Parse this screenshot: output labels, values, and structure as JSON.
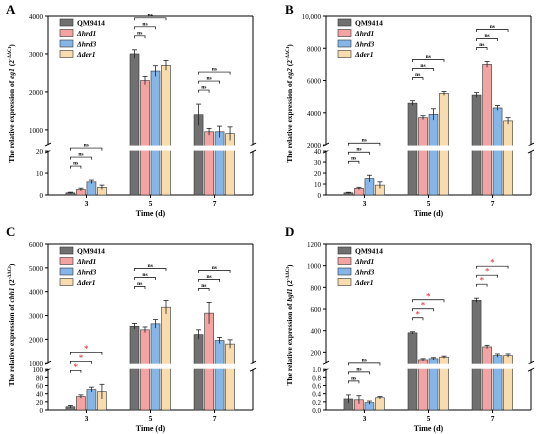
{
  "colors": {
    "QM9414": "#707070",
    "Δhrd1": "#f4a3a3",
    "Δhrd3": "#86b6e8",
    "Δder1": "#f8dcae"
  },
  "chart_data": [
    {
      "panel": "A",
      "type": "bar",
      "ylabel": "The relative expression of eg1 (2^-ΔΔCt)",
      "xlabel": "Time (d)",
      "categories": [
        "3",
        "5",
        "7"
      ],
      "legend": [
        "QM9414",
        "Δhrd1",
        "Δhrd3",
        "Δder1"
      ],
      "legend_position": "top-left",
      "y_break": true,
      "lower_axis": {
        "range": [
          0,
          20
        ],
        "ticks": [
          0,
          10,
          20
        ]
      },
      "upper_axis": {
        "range": [
          600,
          4000
        ],
        "ticks": [
          1000,
          2000,
          3000,
          4000
        ]
      },
      "series": [
        {
          "name": "QM9414",
          "values": [
            1.0,
            3000,
            1400
          ],
          "errors": [
            0.3,
            110,
            280
          ]
        },
        {
          "name": "Δhrd1",
          "values": [
            2.5,
            2300,
            950
          ],
          "errors": [
            0.6,
            110,
            90
          ]
        },
        {
          "name": "Δhrd3",
          "values": [
            6.0,
            2550,
            950
          ],
          "errors": [
            0.8,
            140,
            150
          ]
        },
        {
          "name": "Δder1",
          "values": [
            3.5,
            2700,
            900
          ],
          "errors": [
            1.0,
            130,
            180
          ]
        }
      ],
      "significance": [
        {
          "label": "ns",
          "category": 0,
          "from": 0,
          "to": 1,
          "level": 1
        },
        {
          "label": "ns",
          "category": 0,
          "from": 0,
          "to": 2,
          "level": 2
        },
        {
          "label": "ns",
          "category": 0,
          "from": 0,
          "to": 3,
          "level": 3
        },
        {
          "label": "ns",
          "category": 1,
          "from": 0,
          "to": 1,
          "level": 1
        },
        {
          "label": "ns",
          "category": 1,
          "from": 0,
          "to": 2,
          "level": 2
        },
        {
          "label": "ns",
          "category": 1,
          "from": 0,
          "to": 3,
          "level": 3
        },
        {
          "label": "ns",
          "category": 2,
          "from": 0,
          "to": 1,
          "level": 1
        },
        {
          "label": "ns",
          "category": 2,
          "from": 0,
          "to": 2,
          "level": 2
        },
        {
          "label": "ns",
          "category": 2,
          "from": 0,
          "to": 3,
          "level": 3
        }
      ]
    },
    {
      "panel": "B",
      "type": "bar",
      "ylabel": "The relative expression of eg2 (2^-ΔΔCt)",
      "xlabel": "Time (d)",
      "categories": [
        "3",
        "5",
        "7"
      ],
      "legend": [
        "QM9414",
        "Δhrd1",
        "Δhrd3",
        "Δder1"
      ],
      "legend_position": "top-left",
      "y_break": true,
      "lower_axis": {
        "range": [
          0,
          40
        ],
        "ticks": [
          0,
          10,
          20,
          30,
          40
        ]
      },
      "upper_axis": {
        "range": [
          2000,
          10000
        ],
        "ticks": [
          2000,
          4000,
          6000,
          8000,
          10000
        ]
      },
      "series": [
        {
          "name": "QM9414",
          "values": [
            2,
            4600,
            5100
          ],
          "errors": [
            0.5,
            150,
            150
          ]
        },
        {
          "name": "Δhrd1",
          "values": [
            6,
            3700,
            7000
          ],
          "errors": [
            1.0,
            120,
            180
          ]
        },
        {
          "name": "Δhrd3",
          "values": [
            15,
            3900,
            4300
          ],
          "errors": [
            3.0,
            350,
            150
          ]
        },
        {
          "name": "Δder1",
          "values": [
            9,
            5200,
            3500
          ],
          "errors": [
            3.0,
            120,
            200
          ]
        }
      ],
      "significance": [
        {
          "label": "ns",
          "category": 0,
          "from": 0,
          "to": 1,
          "level": 1
        },
        {
          "label": "ns",
          "category": 0,
          "from": 0,
          "to": 2,
          "level": 2
        },
        {
          "label": "ns",
          "category": 0,
          "from": 0,
          "to": 3,
          "level": 3
        },
        {
          "label": "ns",
          "category": 1,
          "from": 0,
          "to": 1,
          "level": 1
        },
        {
          "label": "ns",
          "category": 1,
          "from": 0,
          "to": 2,
          "level": 2
        },
        {
          "label": "ns",
          "category": 1,
          "from": 0,
          "to": 3,
          "level": 3
        },
        {
          "label": "ns",
          "category": 2,
          "from": 0,
          "to": 1,
          "level": 1
        },
        {
          "label": "ns",
          "category": 2,
          "from": 0,
          "to": 2,
          "level": 2
        },
        {
          "label": "ns",
          "category": 2,
          "from": 0,
          "to": 3,
          "level": 3
        }
      ]
    },
    {
      "panel": "C",
      "type": "bar",
      "ylabel": "The relative expression of cbh1 (2^-ΔΔCt)",
      "xlabel": "Time (d)",
      "categories": [
        "3",
        "5",
        "7"
      ],
      "legend": [
        "QM9414",
        "Δhrd1",
        "Δhrd3",
        "Δder1"
      ],
      "legend_position": "top-left",
      "y_break": true,
      "lower_axis": {
        "range": [
          0,
          100
        ],
        "ticks": [
          0,
          20,
          40,
          60,
          80,
          100
        ]
      },
      "upper_axis": {
        "range": [
          1000,
          6000
        ],
        "ticks": [
          1000,
          2000,
          3000,
          4000,
          5000,
          6000
        ]
      },
      "series": [
        {
          "name": "QM9414",
          "values": [
            8,
            2550,
            2200
          ],
          "errors": [
            3,
            120,
            200
          ]
        },
        {
          "name": "Δhrd1",
          "values": [
            33,
            2400,
            3100
          ],
          "errors": [
            4,
            120,
            450
          ]
        },
        {
          "name": "Δhrd3",
          "values": [
            50,
            2650,
            1950
          ],
          "errors": [
            6,
            180,
            130
          ]
        },
        {
          "name": "Δder1",
          "values": [
            45,
            3350,
            1800
          ],
          "errors": [
            18,
            280,
            180
          ]
        }
      ],
      "significance": [
        {
          "label": "*",
          "category": 0,
          "from": 0,
          "to": 1,
          "level": 1
        },
        {
          "label": "*",
          "category": 0,
          "from": 0,
          "to": 2,
          "level": 2
        },
        {
          "label": "*",
          "category": 0,
          "from": 0,
          "to": 3,
          "level": 3
        },
        {
          "label": "ns",
          "category": 1,
          "from": 0,
          "to": 1,
          "level": 1
        },
        {
          "label": "ns",
          "category": 1,
          "from": 0,
          "to": 2,
          "level": 2
        },
        {
          "label": "ns",
          "category": 1,
          "from": 0,
          "to": 3,
          "level": 3
        },
        {
          "label": "ns",
          "category": 2,
          "from": 0,
          "to": 1,
          "level": 1
        },
        {
          "label": "ns",
          "category": 2,
          "from": 0,
          "to": 2,
          "level": 2
        },
        {
          "label": "ns",
          "category": 2,
          "from": 0,
          "to": 3,
          "level": 3
        }
      ]
    },
    {
      "panel": "D",
      "type": "bar",
      "ylabel": "The relative expression of bgl1 (2^-ΔΔCt)",
      "xlabel": "Time (d)",
      "categories": [
        "3",
        "5",
        "7"
      ],
      "legend": [
        "QM9414",
        "Δhrd1",
        "Δhrd3",
        "Δder1"
      ],
      "legend_position": "top-left",
      "y_break": true,
      "lower_axis": {
        "range": [
          0,
          1.0
        ],
        "ticks": [
          0.0,
          0.2,
          0.4,
          0.6,
          0.8,
          1.0
        ]
      },
      "upper_axis": {
        "range": [
          100,
          1200
        ],
        "ticks": [
          200,
          400,
          600,
          800,
          1000,
          1200
        ]
      },
      "series": [
        {
          "name": "QM9414",
          "values": [
            0.27,
            380,
            680
          ],
          "errors": [
            0.1,
            10,
            20
          ]
        },
        {
          "name": "Δhrd1",
          "values": [
            0.25,
            130,
            250
          ],
          "errors": [
            0.1,
            10,
            15
          ]
        },
        {
          "name": "Δhrd3",
          "values": [
            0.18,
            140,
            170
          ],
          "errors": [
            0.04,
            10,
            15
          ]
        },
        {
          "name": "Δder1",
          "values": [
            0.3,
            155,
            170
          ],
          "errors": [
            0.03,
            10,
            15
          ]
        }
      ],
      "significance": [
        {
          "label": "ns",
          "category": 0,
          "from": 0,
          "to": 1,
          "level": 1
        },
        {
          "label": "ns",
          "category": 0,
          "from": 0,
          "to": 2,
          "level": 2
        },
        {
          "label": "ns",
          "category": 0,
          "from": 0,
          "to": 3,
          "level": 3
        },
        {
          "label": "*",
          "category": 1,
          "from": 0,
          "to": 1,
          "level": 1
        },
        {
          "label": "*",
          "category": 1,
          "from": 0,
          "to": 2,
          "level": 2
        },
        {
          "label": "*",
          "category": 1,
          "from": 0,
          "to": 3,
          "level": 3
        },
        {
          "label": "*",
          "category": 2,
          "from": 0,
          "to": 1,
          "level": 1
        },
        {
          "label": "*",
          "category": 2,
          "from": 0,
          "to": 2,
          "level": 2
        },
        {
          "label": "*",
          "category": 2,
          "from": 0,
          "to": 3,
          "level": 3
        }
      ]
    }
  ]
}
